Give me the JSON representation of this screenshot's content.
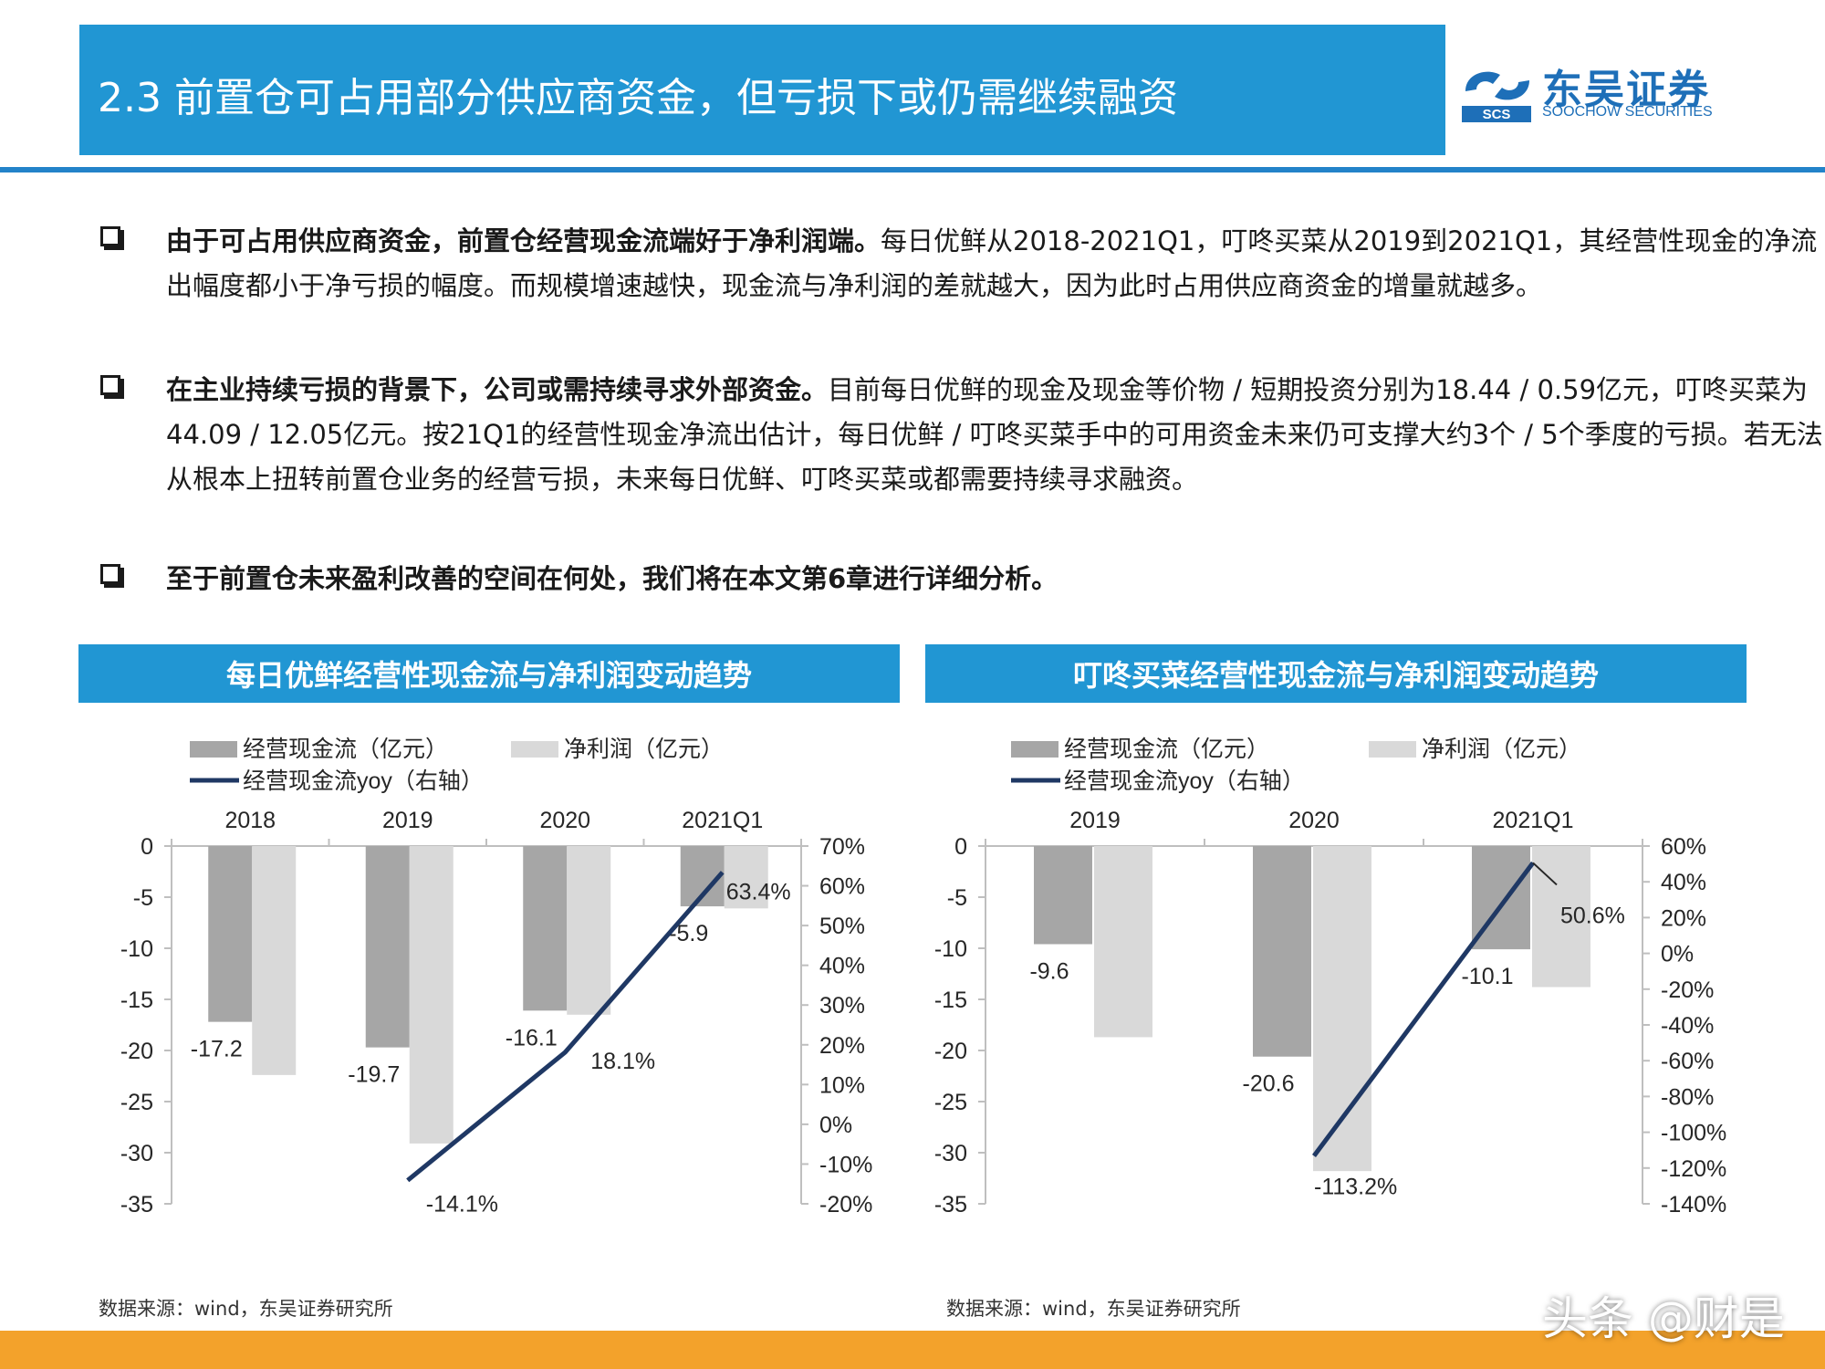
{
  "header": {
    "title": "2.3 前置仓可占用部分供应商资金，但亏损下或仍需继续融资",
    "logo_cn": "东吴证券",
    "logo_en": "SOOCHOW SECURITIES",
    "logo_mark": "SCS"
  },
  "bullets": [
    {
      "bold": "由于可占用供应商资金，前置仓经营现金流端好于净利润端。",
      "text": "每日优鲜从2018-2021Q1，叮咚买菜从2019到2021Q1，其经营性现金的净流出幅度都小于净亏损的幅度。而规模增速越快，现金流与净利润的差就越大，因为此时占用供应商资金的增量就越多。"
    },
    {
      "bold": "在主业持续亏损的背景下，公司或需持续寻求外部资金。",
      "text": "目前每日优鲜的现金及现金等价物 / 短期投资分别为18.44 / 0.59亿元，叮咚买菜为44.09 / 12.05亿元。按21Q1的经营性现金净流出估计，每日优鲜 / 叮咚买菜手中的可用资金未来仍可支撑大约3个 / 5个季度的亏损。若无法从根本上扭转前置仓业务的经营亏损，未来每日优鲜、叮咚买菜或都需要持续寻求融资。"
    },
    {
      "bold": "至于前置仓未来盈利改善的空间在何处，我们将在本文第6章进行详细分析。",
      "text": ""
    }
  ],
  "chart_data": [
    {
      "type": "bar",
      "title": "每日优鲜经营性现金流与净利润变动趋势",
      "categories": [
        "2018",
        "2019",
        "2020",
        "2021Q1"
      ],
      "series": [
        {
          "name": "经营现金流（亿元）",
          "values": [
            -17.2,
            -19.7,
            -16.1,
            -5.9
          ],
          "color": "#a6a6a6",
          "labels": [
            "-17.2",
            "-19.7",
            "-16.1",
            "-5.9"
          ]
        },
        {
          "name": "净利润（亿元）",
          "values": [
            -22.4,
            -29.1,
            -16.5,
            -6.1
          ],
          "color": "#d9d9d9"
        },
        {
          "name": "经营现金流yoy（右轴）",
          "type": "line",
          "axis": "right",
          "x": [
            "2019",
            "2020",
            "2021Q1"
          ],
          "values": [
            -14.1,
            18.1,
            63.4
          ],
          "labels": [
            "-14.1%",
            "18.1%",
            "63.4%"
          ],
          "color": "#1f3864"
        }
      ],
      "ylim": [
        -35,
        0
      ],
      "yticks": [
        "0",
        "-5",
        "-10",
        "-15",
        "-20",
        "-25",
        "-30",
        "-35"
      ],
      "y2lim": [
        -20,
        70
      ],
      "y2ticks": [
        "70%",
        "60%",
        "50%",
        "40%",
        "30%",
        "20%",
        "10%",
        "0%",
        "-10%",
        "-20%"
      ],
      "legend_position": "top-left",
      "source": "数据来源：wind，东吴证券研究所"
    },
    {
      "type": "bar",
      "title": "叮咚买菜经营性现金流与净利润变动趋势",
      "categories": [
        "2019",
        "2020",
        "2021Q1"
      ],
      "series": [
        {
          "name": "经营现金流（亿元）",
          "values": [
            -9.6,
            -20.6,
            -10.1
          ],
          "color": "#a6a6a6",
          "labels": [
            "-9.6",
            "-20.6",
            "-10.1"
          ]
        },
        {
          "name": "净利润（亿元）",
          "values": [
            -18.7,
            -31.8,
            -13.8
          ],
          "color": "#d9d9d9"
        },
        {
          "name": "经营现金流yoy（右轴）",
          "type": "line",
          "axis": "right",
          "x": [
            "2020",
            "2021Q1"
          ],
          "values": [
            -113.2,
            50.6
          ],
          "labels": [
            "-113.2%",
            "50.6%"
          ],
          "color": "#1f3864"
        }
      ],
      "ylim": [
        -35,
        0
      ],
      "yticks": [
        "0",
        "-5",
        "-10",
        "-15",
        "-20",
        "-25",
        "-30",
        "-35"
      ],
      "y2lim": [
        -140,
        60
      ],
      "y2ticks": [
        "60%",
        "40%",
        "20%",
        "0%",
        "-20%",
        "-40%",
        "-60%",
        "-80%",
        "-100%",
        "-120%",
        "-140%"
      ],
      "legend_position": "top-left",
      "source": "数据来源：wind，东吴证券研究所"
    }
  ],
  "watermark": "头条 @财是",
  "colors": {
    "accent": "#2196d3",
    "rule": "#2383c9",
    "footer": "#f3a22b",
    "line": "#1f3864"
  }
}
